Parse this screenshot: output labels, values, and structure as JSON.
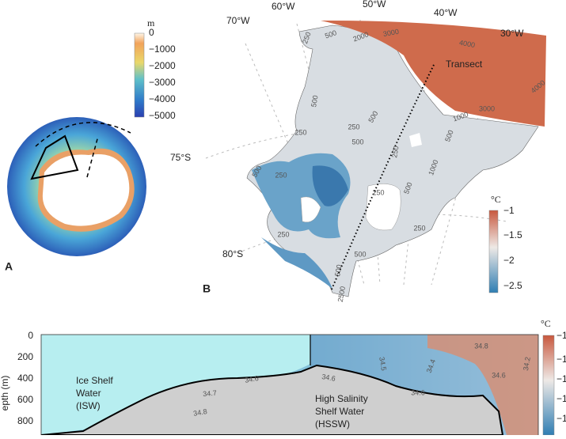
{
  "panel_a": {
    "label": "A",
    "colorbar": {
      "unit": "m",
      "ticks": [
        "0",
        "−1000",
        "−2000",
        "−3000",
        "−4000",
        "−5000"
      ]
    }
  },
  "panel_b": {
    "label": "B",
    "longitudes": [
      "70°W",
      "60°W",
      "50°W",
      "40°W",
      "30°W"
    ],
    "latitudes": [
      "75°S",
      "80°S"
    ],
    "transect_label": "Transect",
    "colorbar": {
      "unit": "°C",
      "ticks": [
        "−1",
        "−1.5",
        "−2",
        "−2.5"
      ]
    },
    "contour_labels": [
      "250",
      "500",
      "2000",
      "3000",
      "4000",
      "1000",
      "500",
      "250",
      "500",
      "500",
      "1000",
      "500",
      "250",
      "250",
      "500",
      "250",
      "500",
      "250",
      "250",
      "500",
      "250",
      "500",
      "2500",
      "3000",
      "4000"
    ]
  },
  "panel_c": {
    "y_axis_label": "epth (m)",
    "y_ticks": [
      "0",
      "200",
      "400",
      "600",
      "800"
    ],
    "water_masses": [
      [
        "Ice Shelf",
        "Water",
        "(ISW)"
      ],
      [
        "High Salinity",
        "Shelf Water",
        "(HSSW)"
      ]
    ],
    "isohaline_labels": [
      "34.6",
      "34.7",
      "34.8",
      "34.6",
      "34.6",
      "34.5",
      "34.4",
      "34.8",
      "34.2",
      "34.6"
    ],
    "colorbar": {
      "unit": "°C",
      "ticks": [
        "−1",
        "−1.",
        "−1.",
        "−1.",
        "−1."
      ]
    }
  }
}
